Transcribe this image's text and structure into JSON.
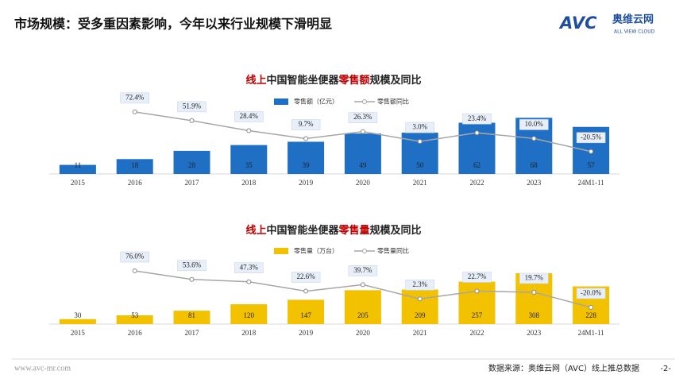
{
  "header": {
    "title": "市场规模：受多重因素影响，今年以来行业规模下滑明显",
    "logo": "AVC",
    "brand": "奥维云网",
    "brand_en": "ALL VIEW CLOUD"
  },
  "footer": {
    "url": "www.avc-mr.com",
    "source": "数据来源：奥维云网（AVC）线上推总数据",
    "page": "-2-"
  },
  "chart_data": [
    {
      "type": "bar",
      "title": [
        {
          "text": "线上",
          "color": "#c00000"
        },
        {
          "text": "中国智能坐便器",
          "color": "#222222"
        },
        {
          "text": "零售额",
          "color": "#c00000"
        },
        {
          "text": "规模及同比",
          "color": "#222222"
        }
      ],
      "categories": [
        "2015",
        "2016",
        "2017",
        "2018",
        "2019",
        "2020",
        "2021",
        "2022",
        "2023",
        "24M1-11"
      ],
      "series": [
        {
          "name": "零售额（亿元）",
          "type": "bar",
          "color": "#1f6fc5",
          "values": [
            11,
            18,
            28,
            35,
            39,
            49,
            50,
            62,
            68,
            57
          ]
        },
        {
          "name": "零售额同比",
          "type": "line",
          "axis": "y2",
          "color": "#a6a6a6",
          "values": [
            null,
            72.4,
            51.9,
            28.4,
            9.7,
            26.3,
            3.0,
            23.4,
            10.0,
            -20.5
          ],
          "value_labels": [
            null,
            "72.4%",
            "51.9%",
            "28.4%",
            "9.7%",
            "26.3%",
            "3.0%",
            "23.4%",
            "10.0%",
            "-20.5%"
          ]
        }
      ],
      "ylim": [
        0,
        76
      ],
      "y2lim": [
        -73,
        74
      ]
    },
    {
      "type": "bar",
      "title": [
        {
          "text": "线上",
          "color": "#c00000"
        },
        {
          "text": "中国智能坐便器",
          "color": "#222222"
        },
        {
          "text": "零售量",
          "color": "#c00000"
        },
        {
          "text": "规模及同比",
          "color": "#222222"
        }
      ],
      "categories": [
        "2015",
        "2016",
        "2017",
        "2018",
        "2019",
        "2020",
        "2021",
        "2022",
        "2023",
        "24M1-11"
      ],
      "series": [
        {
          "name": "零售量（万台）",
          "type": "bar",
          "color": "#f2c200",
          "values": [
            30,
            53,
            81,
            120,
            147,
            205,
            209,
            257,
            308,
            228
          ]
        },
        {
          "name": "零售量同比",
          "type": "line",
          "axis": "y2",
          "color": "#a6a6a6",
          "values": [
            null,
            76.0,
            53.6,
            47.3,
            22.6,
            39.7,
            2.3,
            22.7,
            19.7,
            -20.0
          ],
          "value_labels": [
            null,
            "76.0%",
            "53.6%",
            "47.3%",
            "22.6%",
            "39.7%",
            "2.3%",
            "22.7%",
            "19.7%",
            "-20.0%"
          ]
        }
      ],
      "ylim": [
        0,
        375
      ],
      "y2lim": [
        -64,
        99
      ]
    }
  ]
}
